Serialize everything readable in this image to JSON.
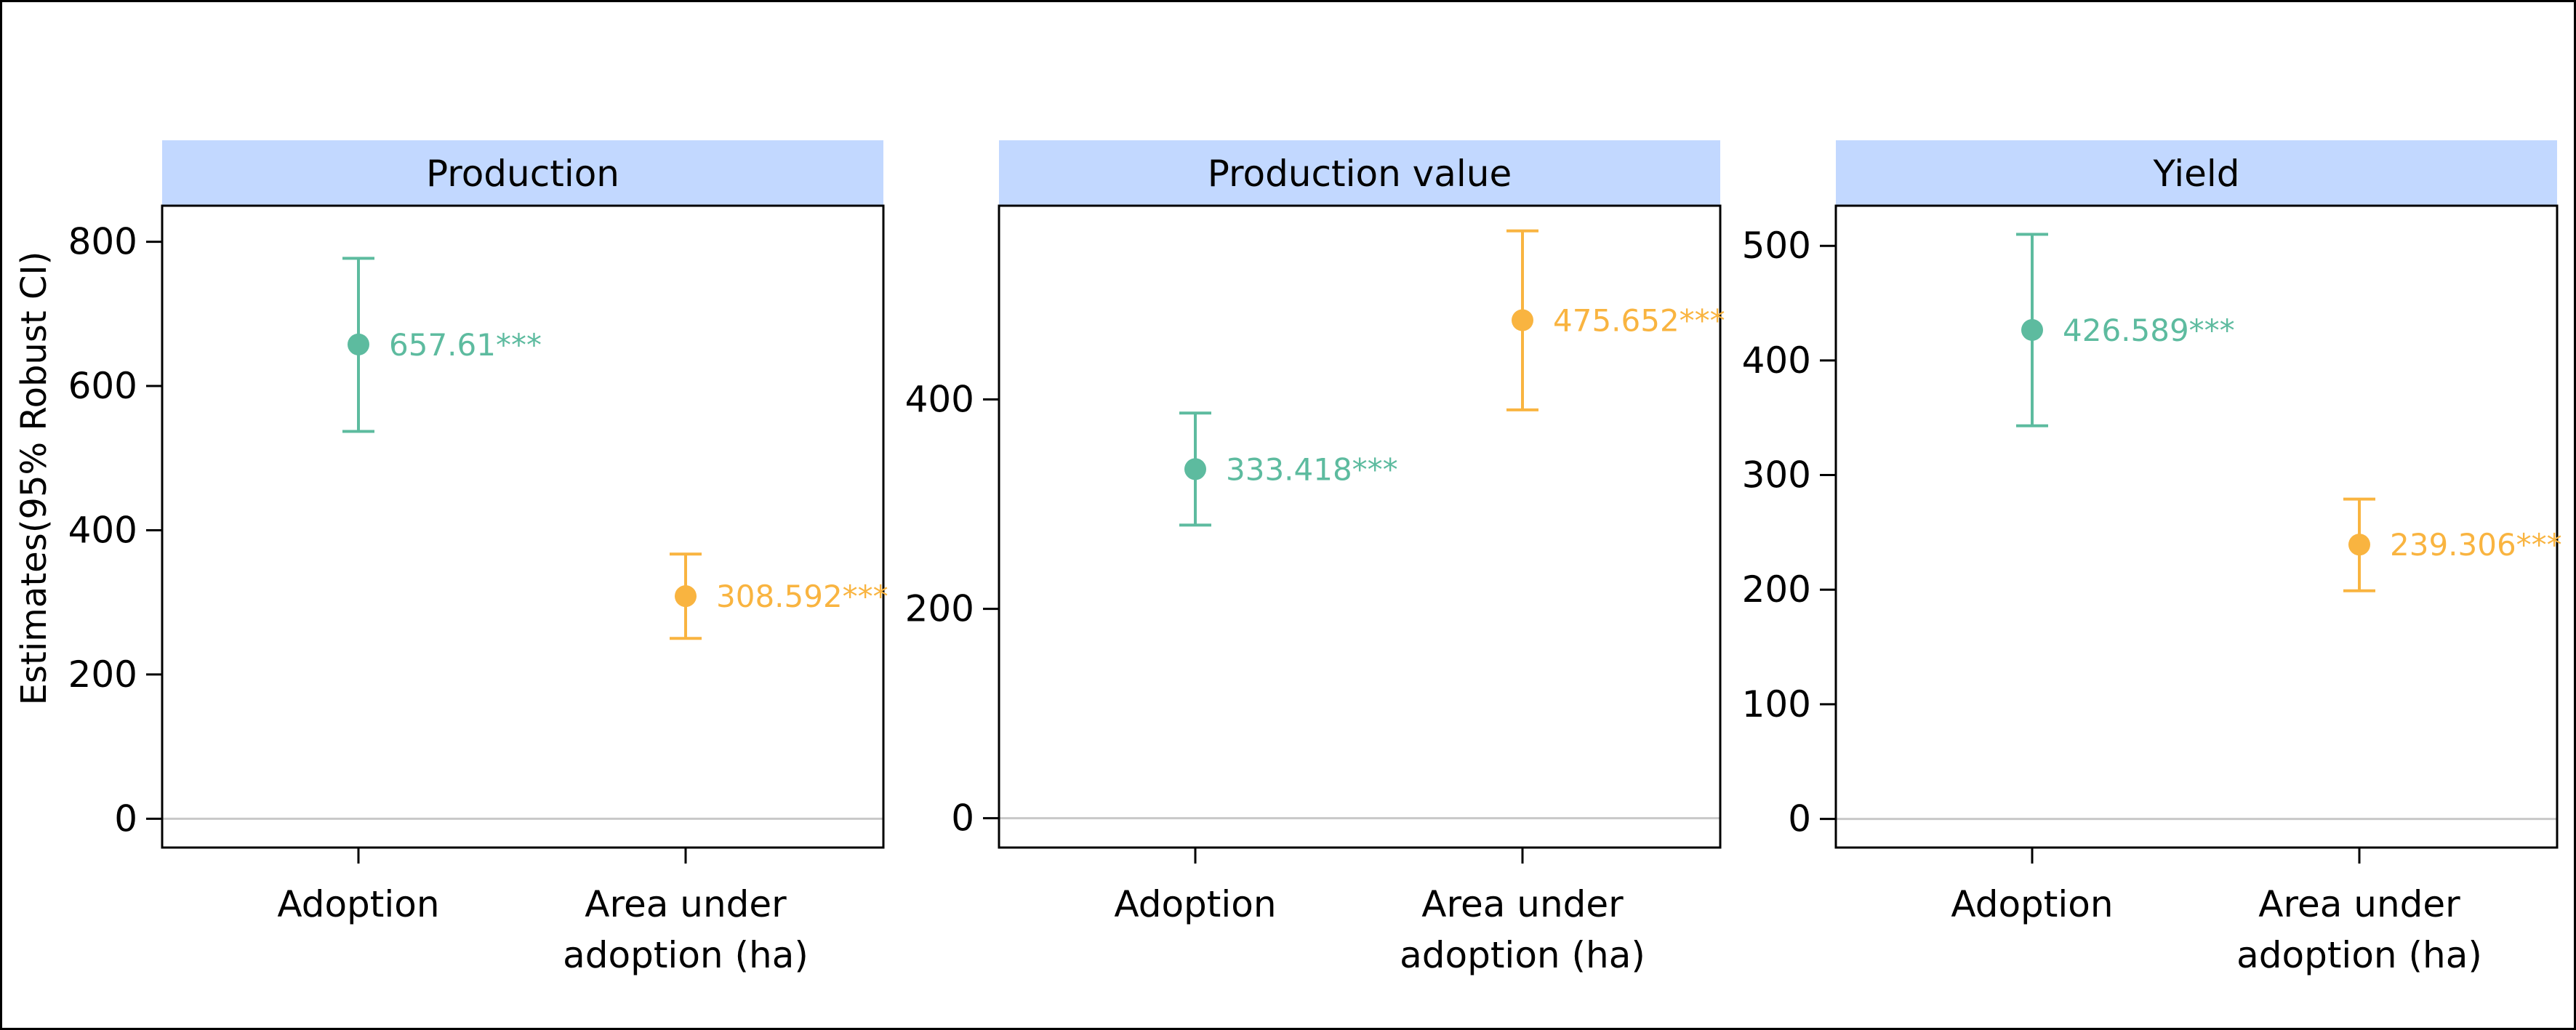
{
  "chart_data": {
    "type": "scatter",
    "ylabel": "Estimates(95% Robust CI)",
    "colors": {
      "Adoption": "#5DBB9F",
      "Area under adoption (ha)": "#F9B440",
      "zero_line": "#C8C8C8",
      "strip": "#C2D8FF"
    },
    "categories": [
      "Adoption",
      "Area under\nadoption (ha)"
    ],
    "category_lines": [
      [
        "Adoption"
      ],
      [
        "Area under",
        "adoption (ha)"
      ]
    ],
    "panels": [
      {
        "title": "Production",
        "ylim": [
          -40,
          850
        ],
        "yticks": [
          0,
          200,
          400,
          600,
          800
        ],
        "points": [
          {
            "category": "Adoption",
            "estimate": 657.61,
            "ci_low": 537,
            "ci_high": 777,
            "label": "657.61***",
            "color": "#5DBB9F"
          },
          {
            "category": "Area under adoption (ha)",
            "estimate": 308.592,
            "ci_low": 250,
            "ci_high": 367,
            "label": "308.592***",
            "color": "#F9B440"
          }
        ]
      },
      {
        "title": "Production value",
        "ylim": [
          -28,
          585
        ],
        "yticks": [
          0,
          200,
          400
        ],
        "points": [
          {
            "category": "Adoption",
            "estimate": 333.418,
            "ci_low": 280,
            "ci_high": 387,
            "label": "333.418***",
            "color": "#5DBB9F"
          },
          {
            "category": "Area under adoption (ha)",
            "estimate": 475.652,
            "ci_low": 390,
            "ci_high": 561,
            "label": "475.652***",
            "color": "#F9B440"
          }
        ]
      },
      {
        "title": "Yield",
        "ylim": [
          -25,
          535
        ],
        "yticks": [
          0,
          100,
          200,
          300,
          400,
          500
        ],
        "points": [
          {
            "category": "Adoption",
            "estimate": 426.589,
            "ci_low": 343,
            "ci_high": 510,
            "label": "426.589***",
            "color": "#5DBB9F"
          },
          {
            "category": "Area under adoption (ha)",
            "estimate": 239.306,
            "ci_low": 199,
            "ci_high": 279,
            "label": "239.306***",
            "color": "#F9B440"
          }
        ]
      }
    ]
  }
}
